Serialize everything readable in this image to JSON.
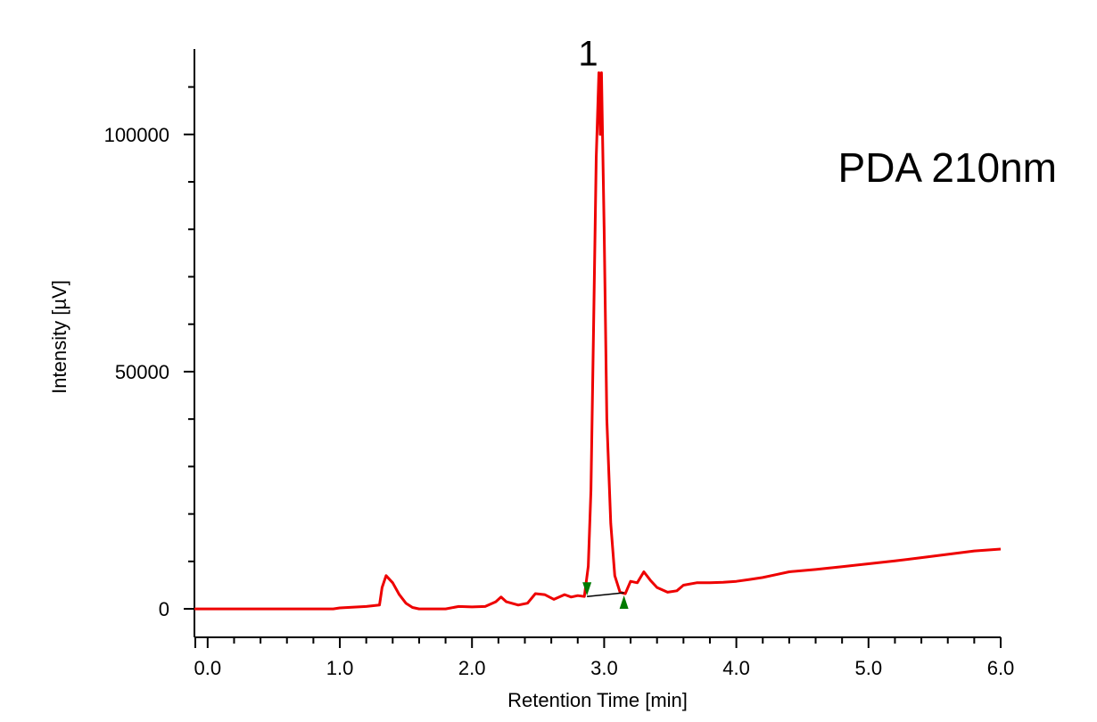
{
  "chart_data": {
    "type": "line",
    "annotation": "PDA 210nm",
    "xlabel": "Retention Time [min]",
    "ylabel": "Intensity [µV]",
    "xlim": [
      -0.1,
      6.0
    ],
    "ylim": [
      -6000,
      118000
    ],
    "x_ticks": [
      0.0,
      1.0,
      2.0,
      3.0,
      4.0,
      5.0,
      6.0
    ],
    "x_tick_labels": [
      "0.0",
      "1.0",
      "2.0",
      "3.0",
      "4.0",
      "5.0",
      "6.0"
    ],
    "y_ticks": [
      0,
      50000,
      100000
    ],
    "y_tick_labels": [
      "0",
      "50000",
      "100000"
    ],
    "grid": false,
    "series": [
      {
        "color": "#ee0000",
        "points": [
          [
            -0.1,
            0
          ],
          [
            0.95,
            0
          ],
          [
            1.0,
            200
          ],
          [
            1.2,
            500
          ],
          [
            1.3,
            800
          ],
          [
            1.32,
            4500
          ],
          [
            1.35,
            7000
          ],
          [
            1.4,
            5500
          ],
          [
            1.45,
            3000
          ],
          [
            1.5,
            1200
          ],
          [
            1.55,
            300
          ],
          [
            1.6,
            0
          ],
          [
            1.8,
            0
          ],
          [
            1.9,
            500
          ],
          [
            2.0,
            400
          ],
          [
            2.1,
            500
          ],
          [
            2.18,
            1500
          ],
          [
            2.22,
            2500
          ],
          [
            2.26,
            1500
          ],
          [
            2.35,
            800
          ],
          [
            2.42,
            1200
          ],
          [
            2.48,
            3200
          ],
          [
            2.55,
            3000
          ],
          [
            2.62,
            2000
          ],
          [
            2.7,
            3000
          ],
          [
            2.75,
            2500
          ],
          [
            2.8,
            2800
          ],
          [
            2.85,
            2600
          ],
          [
            2.88,
            9000
          ],
          [
            2.9,
            25000
          ],
          [
            2.92,
            60000
          ],
          [
            2.94,
            95000
          ],
          [
            2.96,
            113000
          ],
          [
            2.97,
            100000
          ],
          [
            2.98,
            113000
          ],
          [
            3.0,
            80000
          ],
          [
            3.02,
            40000
          ],
          [
            3.05,
            18000
          ],
          [
            3.08,
            7000
          ],
          [
            3.12,
            3500
          ],
          [
            3.16,
            3200
          ],
          [
            3.2,
            5800
          ],
          [
            3.25,
            5500
          ],
          [
            3.3,
            7800
          ],
          [
            3.35,
            6000
          ],
          [
            3.4,
            4500
          ],
          [
            3.48,
            3500
          ],
          [
            3.55,
            3800
          ],
          [
            3.6,
            5000
          ],
          [
            3.7,
            5500
          ],
          [
            3.8,
            5500
          ],
          [
            3.9,
            5600
          ],
          [
            4.0,
            5800
          ],
          [
            4.1,
            6200
          ],
          [
            4.2,
            6600
          ],
          [
            4.3,
            7200
          ],
          [
            4.4,
            7800
          ],
          [
            4.6,
            8300
          ],
          [
            4.8,
            8900
          ],
          [
            5.0,
            9500
          ],
          [
            5.2,
            10100
          ],
          [
            5.4,
            10800
          ],
          [
            5.6,
            11500
          ],
          [
            5.8,
            12200
          ],
          [
            6.0,
            12600
          ]
        ]
      }
    ],
    "peaks": [
      {
        "label": "1",
        "apex_x": 2.96,
        "apex_y": 113000,
        "start_x": 2.87,
        "start_y": 2600,
        "end_x": 3.15,
        "end_y": 3400
      }
    ],
    "marker_color": "#007a00",
    "baseline_color": "#000000"
  }
}
